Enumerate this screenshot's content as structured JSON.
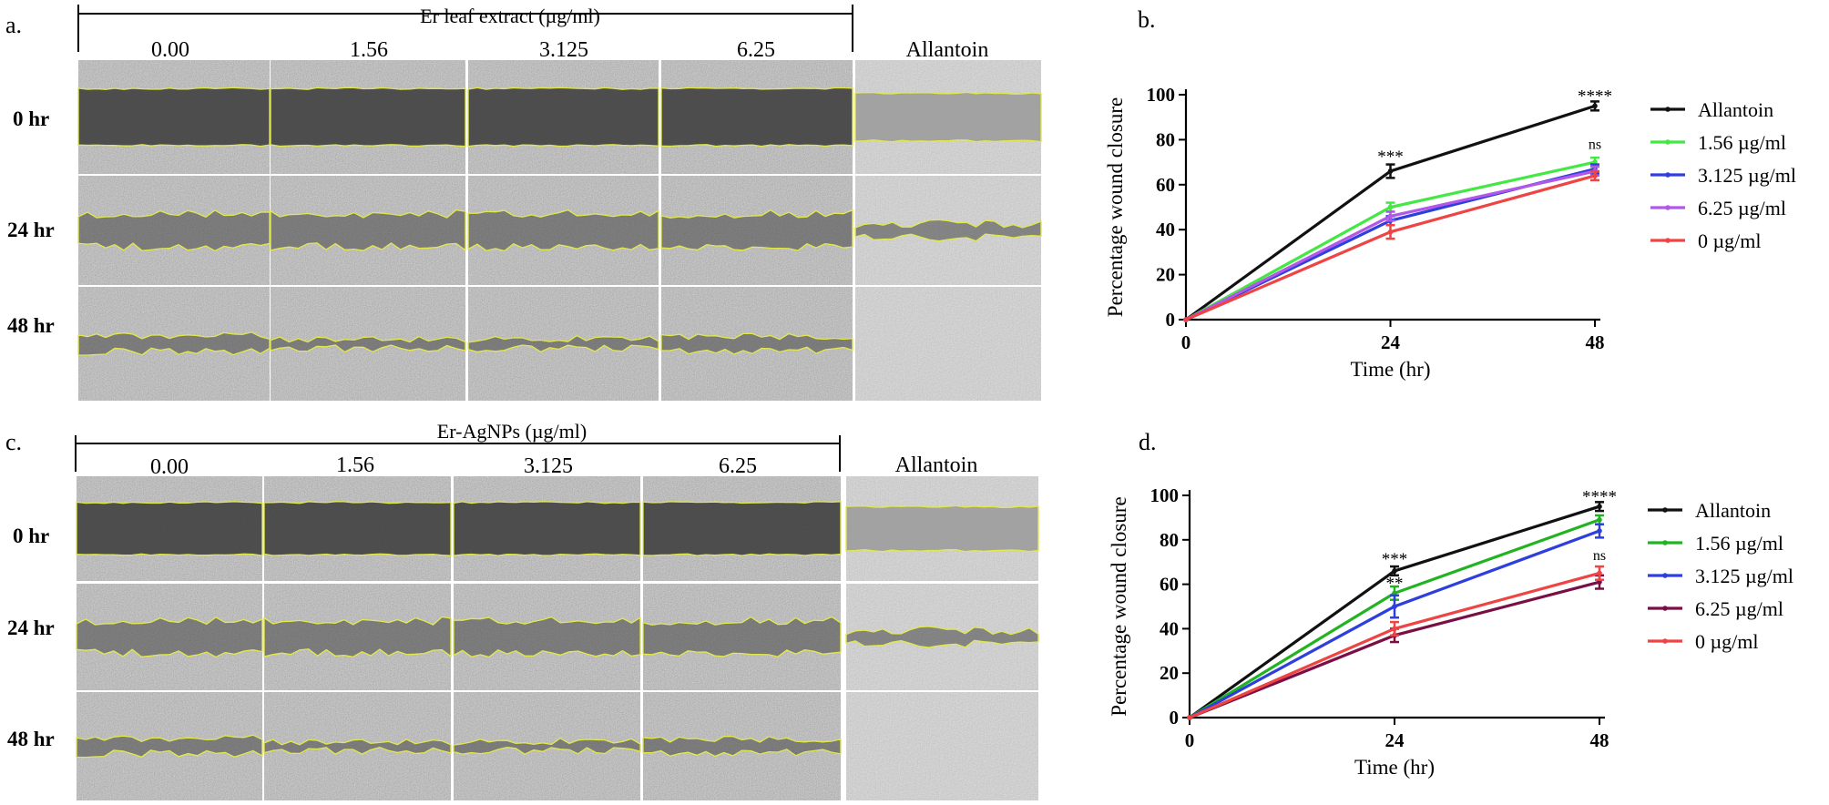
{
  "panel_a": {
    "label": "a.",
    "header": "Er leaf extract (µg/ml)",
    "columns": [
      "0.00",
      "1.56",
      "3.125",
      "6.25",
      "Allantoin"
    ],
    "rows": [
      "0 hr",
      "24 hr",
      "48 hr"
    ]
  },
  "panel_c": {
    "label": "c.",
    "header": "Er-AgNPs (µg/ml)",
    "columns": [
      "0.00",
      "1.56",
      "3.125",
      "6.25",
      "Allantoin"
    ],
    "rows": [
      "0 hr",
      "24 hr",
      "48 hr"
    ]
  },
  "colors": {
    "outline": "#e3e84a",
    "allantoin": "#111111",
    "c156_b": "#44e844",
    "c3125": "#2d3fdc",
    "c625_b": "#b257e8",
    "c0": "#ee4444",
    "c156_d": "#22b322",
    "c625_d": "#7a0f45"
  },
  "chart_data": [
    {
      "type": "line",
      "panel_label": "b.",
      "title": "",
      "xlabel": "Time (hr)",
      "ylabel": "Percentage wound closure",
      "x": [
        0,
        24,
        48
      ],
      "x_ticks": [
        "0",
        "24",
        "48"
      ],
      "y_ticks": [
        "0",
        "20",
        "40",
        "60",
        "80",
        "100"
      ],
      "xlim": [
        0,
        48
      ],
      "ylim": [
        0,
        100
      ],
      "series": [
        {
          "name": "Allantoin",
          "values": [
            0,
            66,
            95
          ],
          "errors": [
            0,
            3,
            2
          ],
          "color_key": "allantoin"
        },
        {
          "name": "1.56 µg/ml",
          "values": [
            0,
            50,
            70
          ],
          "errors": [
            0,
            2,
            2
          ],
          "color_key": "c156_b"
        },
        {
          "name": "3.125 µg/ml",
          "values": [
            0,
            44,
            67
          ],
          "errors": [
            0,
            2,
            2
          ],
          "color_key": "c3125"
        },
        {
          "name": "6.25 µg/ml",
          "values": [
            0,
            46,
            66
          ],
          "errors": [
            0,
            2,
            2
          ],
          "color_key": "c625_b"
        },
        {
          "name": "0 µg/ml",
          "values": [
            0,
            39,
            64
          ],
          "errors": [
            0,
            3,
            2
          ],
          "color_key": "c0"
        }
      ],
      "annotations": [
        {
          "x": 24,
          "y": 72,
          "text": "***"
        },
        {
          "x": 48,
          "y": 99,
          "text": "****"
        },
        {
          "x": 48,
          "y": 78,
          "text": "ns"
        }
      ],
      "legend": "right"
    },
    {
      "type": "line",
      "panel_label": "d.",
      "title": "",
      "xlabel": "Time (hr)",
      "ylabel": "Percentage wound closure",
      "x": [
        0,
        24,
        48
      ],
      "x_ticks": [
        "0",
        "24",
        "48"
      ],
      "y_ticks": [
        "0",
        "20",
        "40",
        "60",
        "80",
        "100"
      ],
      "xlim": [
        0,
        48
      ],
      "ylim": [
        0,
        100
      ],
      "series": [
        {
          "name": "Allantoin",
          "values": [
            0,
            66,
            95
          ],
          "errors": [
            0,
            2,
            2
          ],
          "color_key": "allantoin"
        },
        {
          "name": "1.56 µg/ml",
          "values": [
            0,
            56,
            89
          ],
          "errors": [
            0,
            3,
            2
          ],
          "color_key": "c156_d"
        },
        {
          "name": "3.125 µg/ml",
          "values": [
            0,
            50,
            84
          ],
          "errors": [
            0,
            5,
            3
          ],
          "color_key": "c3125"
        },
        {
          "name": "6.25 µg/ml",
          "values": [
            0,
            37,
            61
          ],
          "errors": [
            0,
            3,
            3
          ],
          "color_key": "c625_d"
        },
        {
          "name": "0 µg/ml",
          "values": [
            0,
            40,
            65
          ],
          "errors": [
            0,
            3,
            3
          ],
          "color_key": "c0"
        }
      ],
      "annotations": [
        {
          "x": 24,
          "y": 71,
          "text": "***"
        },
        {
          "x": 24,
          "y": 60,
          "text": "**"
        },
        {
          "x": 48,
          "y": 99,
          "text": "****"
        },
        {
          "x": 48,
          "y": 73,
          "text": "ns"
        }
      ],
      "legend": "right"
    }
  ]
}
